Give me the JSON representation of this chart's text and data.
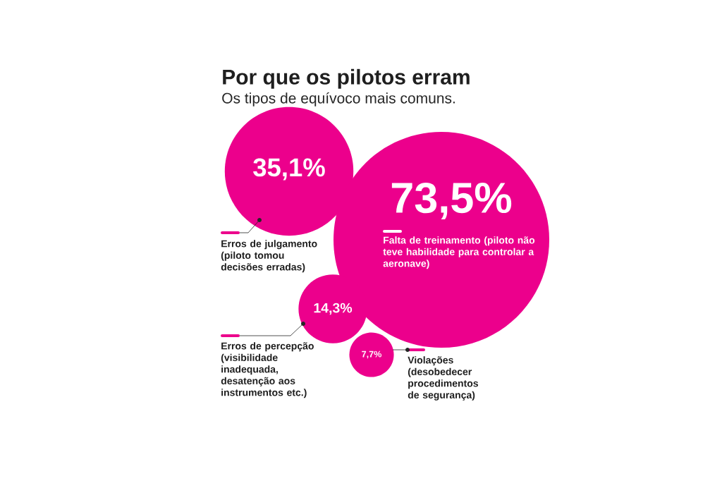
{
  "chart_data": {
    "type": "other",
    "title": "Por que os pilotos erram",
    "subtitle": "Os tipos de equívoco mais comuns.",
    "categories": [
      "Erros de julgamento (piloto tomou decisões erradas)",
      "Falta de treinamento (piloto não teve habilidade para controlar a aeronave)",
      "Erros de percepção (visibilidade inadequada, desatenção aos instrumentos etc.)",
      "Violações (desobedecer procedimentos de segurança)"
    ],
    "values": [
      35.1,
      73.5,
      14.3,
      7.7
    ],
    "value_labels": [
      "35,1%",
      "73,5%",
      "14,3%",
      "7,7%"
    ],
    "color": "#ec008c"
  }
}
